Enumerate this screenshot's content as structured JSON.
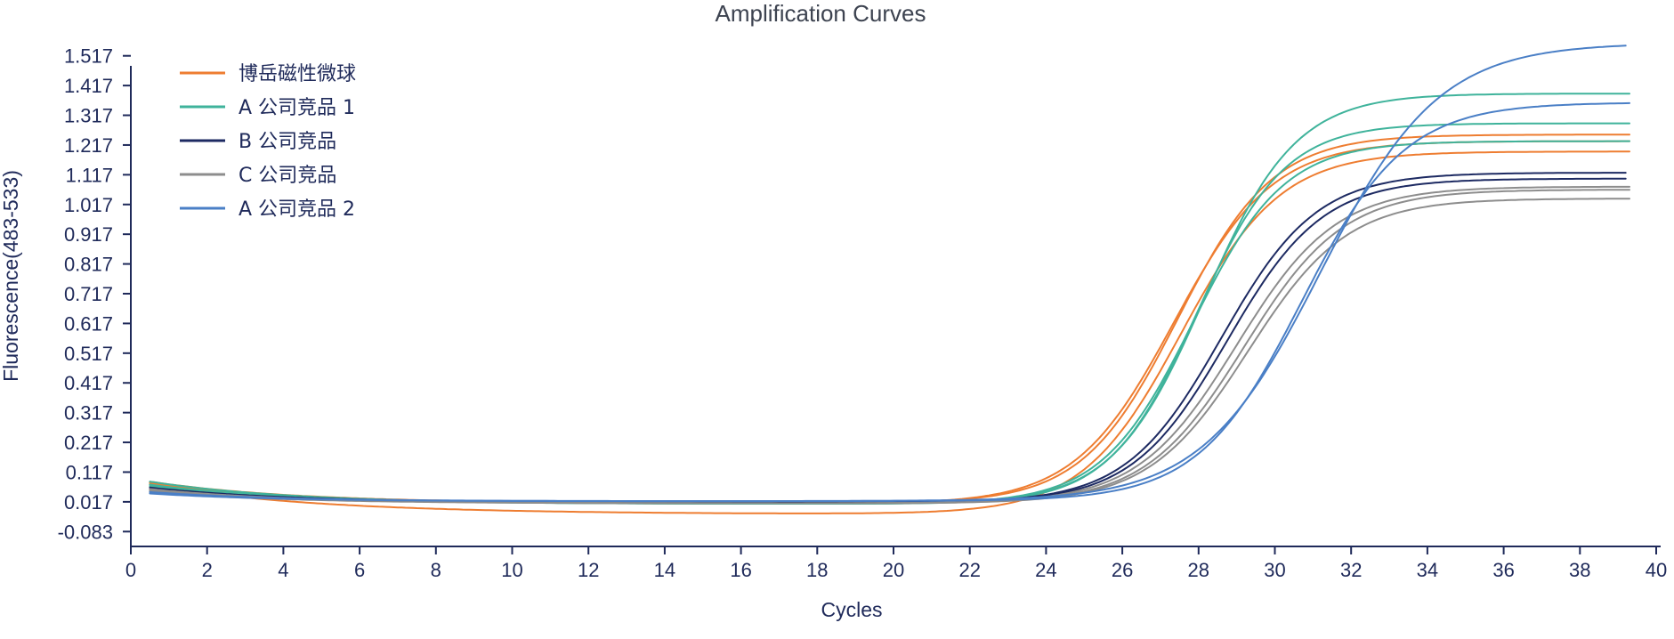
{
  "chart_data": {
    "type": "line",
    "title": "Amplification Curves",
    "xlabel": "Cycles",
    "ylabel": "Fluorescence(483-533)",
    "xlim": [
      0,
      40
    ],
    "ylim": [
      -0.133,
      1.567
    ],
    "x_ticks": [
      0,
      2,
      4,
      6,
      8,
      10,
      12,
      14,
      16,
      18,
      20,
      22,
      24,
      26,
      28,
      30,
      32,
      34,
      36,
      38,
      40
    ],
    "y_ticks": [
      "1.517",
      "1.417",
      "1.317",
      "1.217",
      "1.117",
      "1.017",
      "0.917",
      "0.817",
      "0.717",
      "0.617",
      "0.517",
      "0.417",
      "0.317",
      "0.217",
      "0.117",
      "0.017",
      "-0.083"
    ],
    "grid": false,
    "legend_position": "top-left",
    "series": [
      {
        "name": "博岳磁性微球",
        "color": "#ee7d31",
        "curves": [
          {
            "start": 0.085,
            "plateau": 1.26,
            "mid": 27.45,
            "slope": 1.25,
            "dip": 0.012
          },
          {
            "start": 0.08,
            "plateau": 1.24,
            "mid": 27.35,
            "slope": 1.3,
            "dip": 0.01
          },
          {
            "start": 0.075,
            "plateau": 1.24,
            "mid": 27.55,
            "slope": 1.3,
            "dip": -0.025
          }
        ]
      },
      {
        "name": "A 公司竞品 1",
        "color": "#3fb39b",
        "curves": [
          {
            "start": 0.085,
            "plateau": 1.4,
            "mid": 28.15,
            "slope": 1.2,
            "dip": 0.01
          },
          {
            "start": 0.075,
            "plateau": 1.3,
            "mid": 27.95,
            "slope": 1.15,
            "dip": 0.01
          },
          {
            "start": 0.07,
            "plateau": 1.24,
            "mid": 27.85,
            "slope": 1.2,
            "dip": 0.01
          }
        ]
      },
      {
        "name": "B 公司竞品",
        "color": "#1d2a62",
        "curves": [
          {
            "start": 0.065,
            "plateau": 1.13,
            "mid": 28.6,
            "slope": 1.25,
            "dip": 0.014
          },
          {
            "start": 0.06,
            "plateau": 1.11,
            "mid": 28.75,
            "slope": 1.25,
            "dip": 0.014
          }
        ]
      },
      {
        "name": "C 公司竞品",
        "color": "#8d8d8d",
        "curves": [
          {
            "start": 0.06,
            "plateau": 1.085,
            "mid": 29.0,
            "slope": 1.3,
            "dip": 0.012
          },
          {
            "start": 0.055,
            "plateau": 1.075,
            "mid": 29.2,
            "slope": 1.3,
            "dip": 0.012
          },
          {
            "start": 0.05,
            "plateau": 1.045,
            "mid": 29.3,
            "slope": 1.3,
            "dip": 0.012
          }
        ]
      },
      {
        "name": "A 公司竞品 2",
        "color": "#4a7fc6",
        "curves": [
          {
            "start": 0.05,
            "plateau": 1.56,
            "mid": 31.2,
            "slope": 1.55,
            "dip": 0.02
          },
          {
            "start": 0.045,
            "plateau": 1.36,
            "mid": 30.7,
            "slope": 1.35,
            "dip": 0.02
          }
        ]
      }
    ]
  }
}
